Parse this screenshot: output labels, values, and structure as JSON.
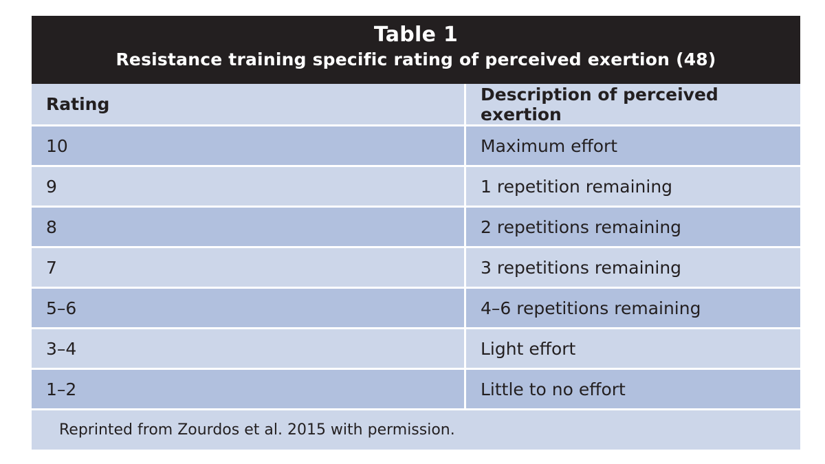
{
  "table": {
    "title": "Table 1",
    "subtitle": "Resistance training specific rating of perceived exertion (48)",
    "columns": [
      "Rating",
      "Description of perceived exertion"
    ],
    "rows": [
      {
        "rating": "10",
        "description": "Maximum effort"
      },
      {
        "rating": "9",
        "description": "1 repetition remaining"
      },
      {
        "rating": "8",
        "description": "2 repetitions remaining"
      },
      {
        "rating": "7",
        "description": "3 repetitions remaining"
      },
      {
        "rating": "5–6",
        "description": "4–6 repetitions remaining"
      },
      {
        "rating": "3–4",
        "description": "Light effort"
      },
      {
        "rating": "1–2",
        "description": "Little to no effort"
      }
    ],
    "footnote": "Reprinted from Zourdos et al. 2015 with permission."
  },
  "colors": {
    "caption_bg": "#231f20",
    "row_dark": "#b1c0de",
    "row_light": "#ccd6e9"
  }
}
